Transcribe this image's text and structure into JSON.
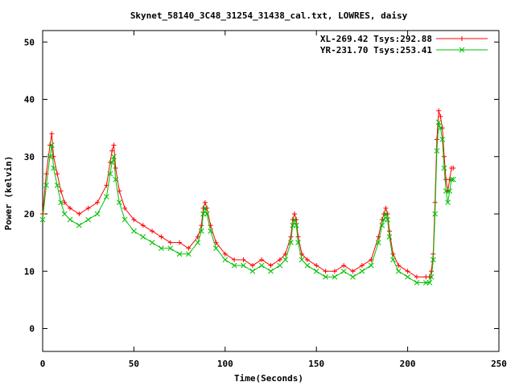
{
  "chart_data": {
    "type": "line",
    "title": "Skynet_58140_3C48_31254_31438_cal.txt, LOWRES, daisy",
    "xlabel": "Time(Seconds)",
    "ylabel": "Power (kelvin)",
    "xlim": [
      0,
      250
    ],
    "ylim": [
      -4,
      52
    ],
    "x_ticks": [
      0,
      50,
      100,
      150,
      200,
      250
    ],
    "y_ticks": [
      0,
      10,
      20,
      30,
      40,
      50
    ],
    "grid": false,
    "legend_position": "top-right",
    "series": [
      {
        "name": "XL-269.42 Tsys:292.88",
        "color": "#ff0000",
        "marker": "plus",
        "x": [
          0,
          2,
          4,
          5,
          6,
          8,
          10,
          12,
          15,
          20,
          25,
          30,
          35,
          37,
          38,
          39,
          40,
          42,
          45,
          50,
          55,
          60,
          65,
          70,
          75,
          80,
          85,
          87,
          88,
          89,
          90,
          92,
          95,
          100,
          105,
          110,
          115,
          120,
          125,
          130,
          133,
          136,
          137,
          138,
          139,
          140,
          142,
          145,
          150,
          155,
          160,
          165,
          170,
          175,
          180,
          184,
          186,
          187,
          188,
          189,
          190,
          192,
          195,
          200,
          205,
          210,
          212,
          213,
          214,
          215,
          216,
          217,
          218,
          219,
          220,
          221,
          222,
          223,
          224,
          225
        ],
        "y": [
          20,
          27,
          32,
          34,
          30,
          27,
          24,
          22,
          21,
          20,
          21,
          22,
          25,
          29,
          31,
          32,
          28,
          24,
          21,
          19,
          18,
          17,
          16,
          15,
          15,
          14,
          16,
          18,
          21,
          22,
          21,
          18,
          15,
          13,
          12,
          12,
          11,
          12,
          11,
          12,
          13,
          16,
          19,
          20,
          19,
          16,
          13,
          12,
          11,
          10,
          10,
          11,
          10,
          11,
          12,
          16,
          19,
          20,
          21,
          20,
          17,
          13,
          11,
          10,
          9,
          9,
          9,
          10,
          13,
          22,
          33,
          38,
          37,
          35,
          30,
          26,
          24,
          26,
          28,
          28
        ]
      },
      {
        "name": "YR-231.70 Tsys:253.41",
        "color": "#00c000",
        "marker": "cross",
        "x": [
          0,
          2,
          4,
          5,
          6,
          8,
          10,
          12,
          15,
          20,
          25,
          30,
          35,
          37,
          38,
          39,
          40,
          42,
          45,
          50,
          55,
          60,
          65,
          70,
          75,
          80,
          85,
          87,
          88,
          89,
          90,
          92,
          95,
          100,
          105,
          110,
          115,
          120,
          125,
          130,
          133,
          136,
          137,
          138,
          139,
          140,
          142,
          145,
          150,
          155,
          160,
          165,
          170,
          175,
          180,
          184,
          186,
          187,
          188,
          189,
          190,
          192,
          195,
          200,
          205,
          210,
          212,
          213,
          214,
          215,
          216,
          217,
          218,
          219,
          220,
          221,
          222,
          223,
          224,
          225
        ],
        "y": [
          19,
          25,
          30,
          32,
          28,
          25,
          22,
          20,
          19,
          18,
          19,
          20,
          23,
          27,
          29,
          30,
          26,
          22,
          19,
          17,
          16,
          15,
          14,
          14,
          13,
          13,
          15,
          17,
          20,
          21,
          20,
          17,
          14,
          12,
          11,
          11,
          10,
          11,
          10,
          11,
          12,
          15,
          18,
          19,
          18,
          15,
          12,
          11,
          10,
          9,
          9,
          10,
          9,
          10,
          11,
          15,
          18,
          19,
          20,
          19,
          16,
          12,
          10,
          9,
          8,
          8,
          8,
          9,
          12,
          20,
          31,
          36,
          35,
          33,
          28,
          24,
          22,
          24,
          26,
          26
        ]
      }
    ]
  }
}
